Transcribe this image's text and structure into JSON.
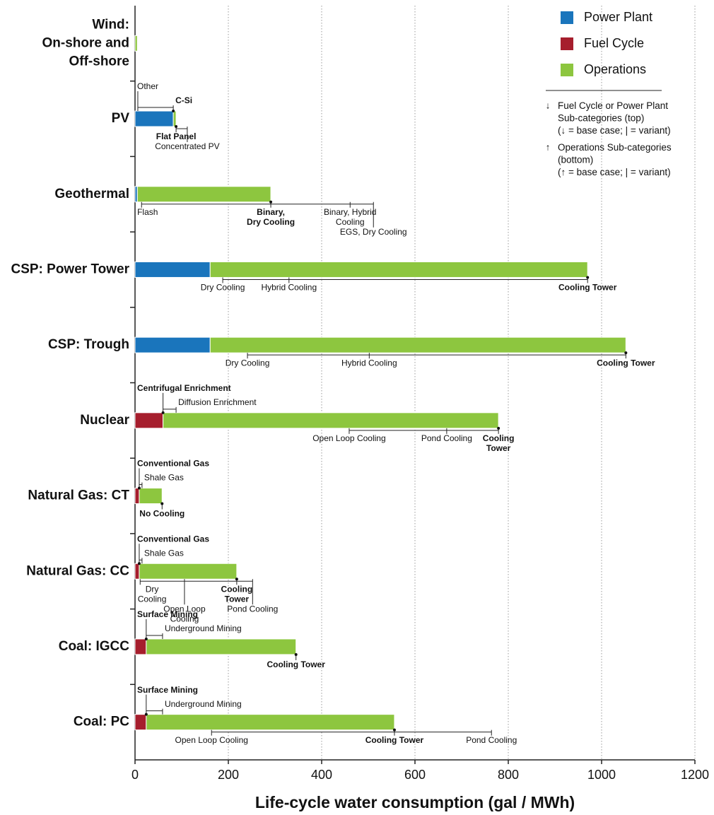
{
  "chart_data": {
    "type": "bar",
    "orientation": "horizontal",
    "stacked": true,
    "xlabel": "Life-cycle water consumption (gal / MWh)",
    "xlim": [
      0,
      1200
    ],
    "xticks": [
      0,
      200,
      400,
      600,
      800,
      1000,
      1200
    ],
    "grid": true,
    "legend_position": "upper right",
    "categories": [
      "Wind:\nOn-shore and\nOff-shore",
      "PV",
      "Geothermal",
      "CSP: Power Tower",
      "CSP: Trough",
      "Nuclear",
      "Natural Gas: CT",
      "Natural Gas: CC",
      "Coal: IGCC",
      "Coal: PC"
    ],
    "series": [
      {
        "name": "Power Plant",
        "color": "#1a75bc",
        "values": [
          0,
          82,
          5,
          161,
          161,
          0,
          0,
          0,
          0,
          0
        ]
      },
      {
        "name": "Fuel Cycle",
        "color": "#a61e2d",
        "values": [
          0,
          0,
          0,
          0,
          0,
          60,
          9,
          9,
          24,
          24
        ]
      },
      {
        "name": "Operations",
        "color": "#8dc63f",
        "values": [
          5,
          6,
          286,
          809,
          891,
          719,
          49,
          209,
          321,
          532
        ]
      }
    ],
    "annotations": [
      {
        "top": [],
        "bottom": []
      },
      {
        "top": [
          {
            "label": "Other",
            "value": 6,
            "base": false
          },
          {
            "label": "C-Si",
            "value": 82,
            "base": true
          }
        ],
        "bottom": [
          {
            "label": "Flat Panel",
            "value": 88,
            "base": true
          },
          {
            "label": "Concentrated PV",
            "value": 112,
            "base": false
          }
        ]
      },
      {
        "top": [],
        "bottom": [
          {
            "label": "Flash",
            "value": 14,
            "base": false
          },
          {
            "label": "Binary,\nDry Cooling",
            "value": 291,
            "base": true
          },
          {
            "label": "Binary, Hybrid\nCooling",
            "value": 461,
            "base": false
          },
          {
            "label": "EGS, Dry Cooling",
            "value": 511,
            "base": false
          }
        ]
      },
      {
        "top": [],
        "bottom": [
          {
            "label": "Dry Cooling",
            "value": 188,
            "base": false
          },
          {
            "label": "Hybrid Cooling",
            "value": 330,
            "base": false
          },
          {
            "label": "Cooling Tower",
            "value": 970,
            "base": true
          }
        ]
      },
      {
        "top": [],
        "bottom": [
          {
            "label": "Dry Cooling",
            "value": 241,
            "base": false
          },
          {
            "label": "Hybrid Cooling",
            "value": 502,
            "base": false
          },
          {
            "label": "Cooling Tower",
            "value": 1052,
            "base": true
          }
        ]
      },
      {
        "top": [
          {
            "label": "Centrifugal Enrichment",
            "value": 60,
            "base": true
          },
          {
            "label": "Diffusion Enrichment",
            "value": 88,
            "base": false
          }
        ],
        "bottom": [
          {
            "label": "Open Loop Cooling",
            "value": 459,
            "base": false
          },
          {
            "label": "Pond Cooling",
            "value": 668,
            "base": false
          },
          {
            "label": "Cooling\nTower",
            "value": 779,
            "base": true
          }
        ]
      },
      {
        "top": [
          {
            "label": "Conventional Gas",
            "value": 9,
            "base": true
          },
          {
            "label": "Shale Gas",
            "value": 15,
            "base": false
          }
        ],
        "bottom": [
          {
            "label": "No Cooling",
            "value": 58,
            "base": true
          }
        ]
      },
      {
        "top": [
          {
            "label": "Conventional Gas",
            "value": 9,
            "base": true
          },
          {
            "label": "Shale Gas",
            "value": 15,
            "base": false
          }
        ],
        "bottom": [
          {
            "label": "Dry\nCooling",
            "value": 11,
            "base": false
          },
          {
            "label": "Open Loop\nCooling",
            "value": 106,
            "base": false
          },
          {
            "label": "Cooling\nTower",
            "value": 218,
            "base": true
          },
          {
            "label": "Pond Cooling",
            "value": 252,
            "base": false
          }
        ]
      },
      {
        "top": [
          {
            "label": "Surface Mining",
            "value": 24,
            "base": true
          },
          {
            "label": "Underground Mining",
            "value": 59,
            "base": false
          }
        ],
        "bottom": [
          {
            "label": "Cooling Tower",
            "value": 345,
            "base": true
          }
        ]
      },
      {
        "top": [
          {
            "label": "Surface Mining",
            "value": 24,
            "base": true
          },
          {
            "label": "Underground Mining",
            "value": 59,
            "base": false
          }
        ],
        "bottom": [
          {
            "label": "Open Loop Cooling",
            "value": 164,
            "base": false
          },
          {
            "label": "Cooling Tower",
            "value": 556,
            "base": true
          },
          {
            "label": "Pond Cooling",
            "value": 764,
            "base": false
          }
        ]
      }
    ],
    "notes": [
      {
        "symbol": "↓",
        "text": "Fuel Cycle or Power Plant\nSub-categories (top)\n(↓ = base case; | = variant)"
      },
      {
        "symbol": "↑",
        "text": "Operations Sub-categories\n(bottom)\n(↑ = base case; | = variant)"
      }
    ]
  }
}
